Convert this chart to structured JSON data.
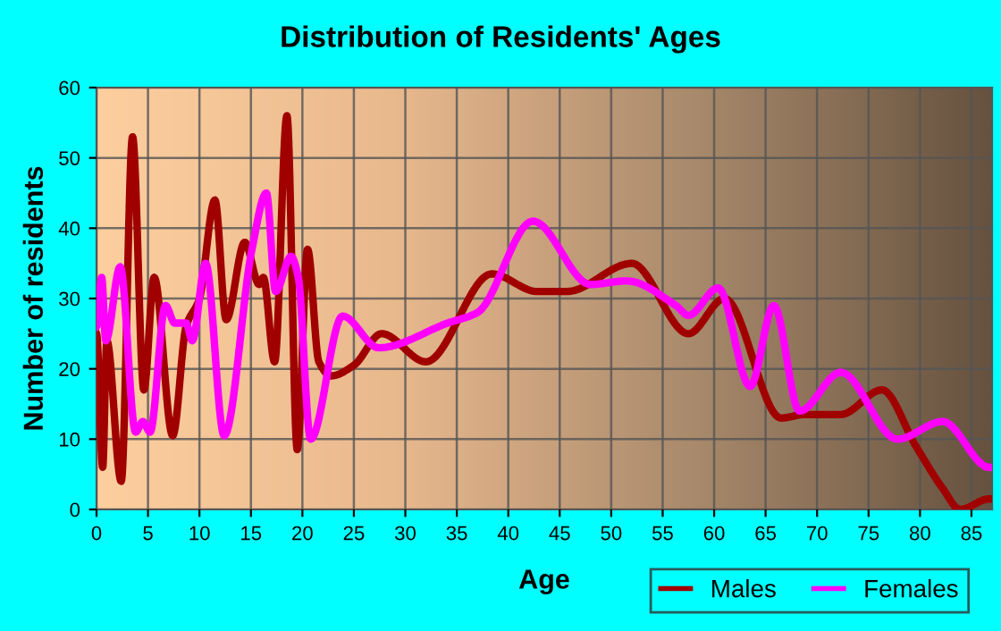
{
  "chart_data": {
    "type": "line",
    "title": "Distribution of Residents' Ages",
    "xlabel": "Age",
    "ylabel": "Number of residents",
    "xlim": [
      0,
      87
    ],
    "xticks": [
      0,
      5,
      10,
      15,
      20,
      25,
      30,
      35,
      40,
      45,
      50,
      55,
      60,
      65,
      70,
      75,
      80,
      85
    ],
    "ylim": [
      0,
      60
    ],
    "yticks": [
      0,
      10,
      20,
      30,
      40,
      50,
      60
    ],
    "grid": true,
    "legend": "bottom right",
    "marker": "none",
    "line_style": "solid",
    "series": [
      {
        "name": "Males",
        "color": "#a00000",
        "x": [
          0,
          0.6,
          1,
          2.4,
          3.5,
          4.6,
          5.6,
          7.4,
          8.7,
          10,
          11.5,
          12.6,
          14.4,
          15.8,
          16.2,
          17.3,
          18.5,
          19.5,
          20.5,
          21.6,
          22.8,
          25,
          27.7,
          32,
          38.4,
          42.8,
          45.7,
          52,
          57.5,
          61,
          66.5,
          68.8,
          72.3,
          76.3,
          79.6,
          82.2,
          83.9,
          86.7
        ],
        "values": [
          25,
          6,
          24,
          4,
          53,
          17,
          33,
          10.5,
          26,
          30,
          44,
          27,
          38,
          32,
          33,
          21,
          56,
          8.5,
          37,
          21,
          19,
          20.5,
          25,
          21,
          33.5,
          31,
          31,
          35,
          25,
          30,
          13,
          13.5,
          13.5,
          17,
          9,
          3,
          0,
          1.5
        ]
      },
      {
        "name": "Females",
        "color": "#ff00ff",
        "x": [
          0,
          0.5,
          0.9,
          2.3,
          3.8,
          4.5,
          5.2,
          6.7,
          7.6,
          8.7,
          9.3,
          10.6,
          12.4,
          15.1,
          16.5,
          17.4,
          18.9,
          19.6,
          20.8,
          23.9,
          27.4,
          34.1,
          37,
          42.4,
          48,
          51.5,
          56.3,
          57.5,
          60.4,
          63.5,
          65.8,
          68.3,
          72.3,
          77.8,
          82.2,
          86.7
        ],
        "values": [
          26,
          33,
          24,
          34.5,
          11,
          12.5,
          11,
          29,
          26.5,
          26.5,
          24,
          35,
          10.5,
          37,
          45,
          31,
          36,
          33,
          10,
          27.5,
          23,
          26.5,
          28,
          41,
          32,
          32.5,
          29,
          27.6,
          31.5,
          17.5,
          29,
          14,
          19.5,
          10,
          12.5,
          6
        ]
      }
    ]
  }
}
